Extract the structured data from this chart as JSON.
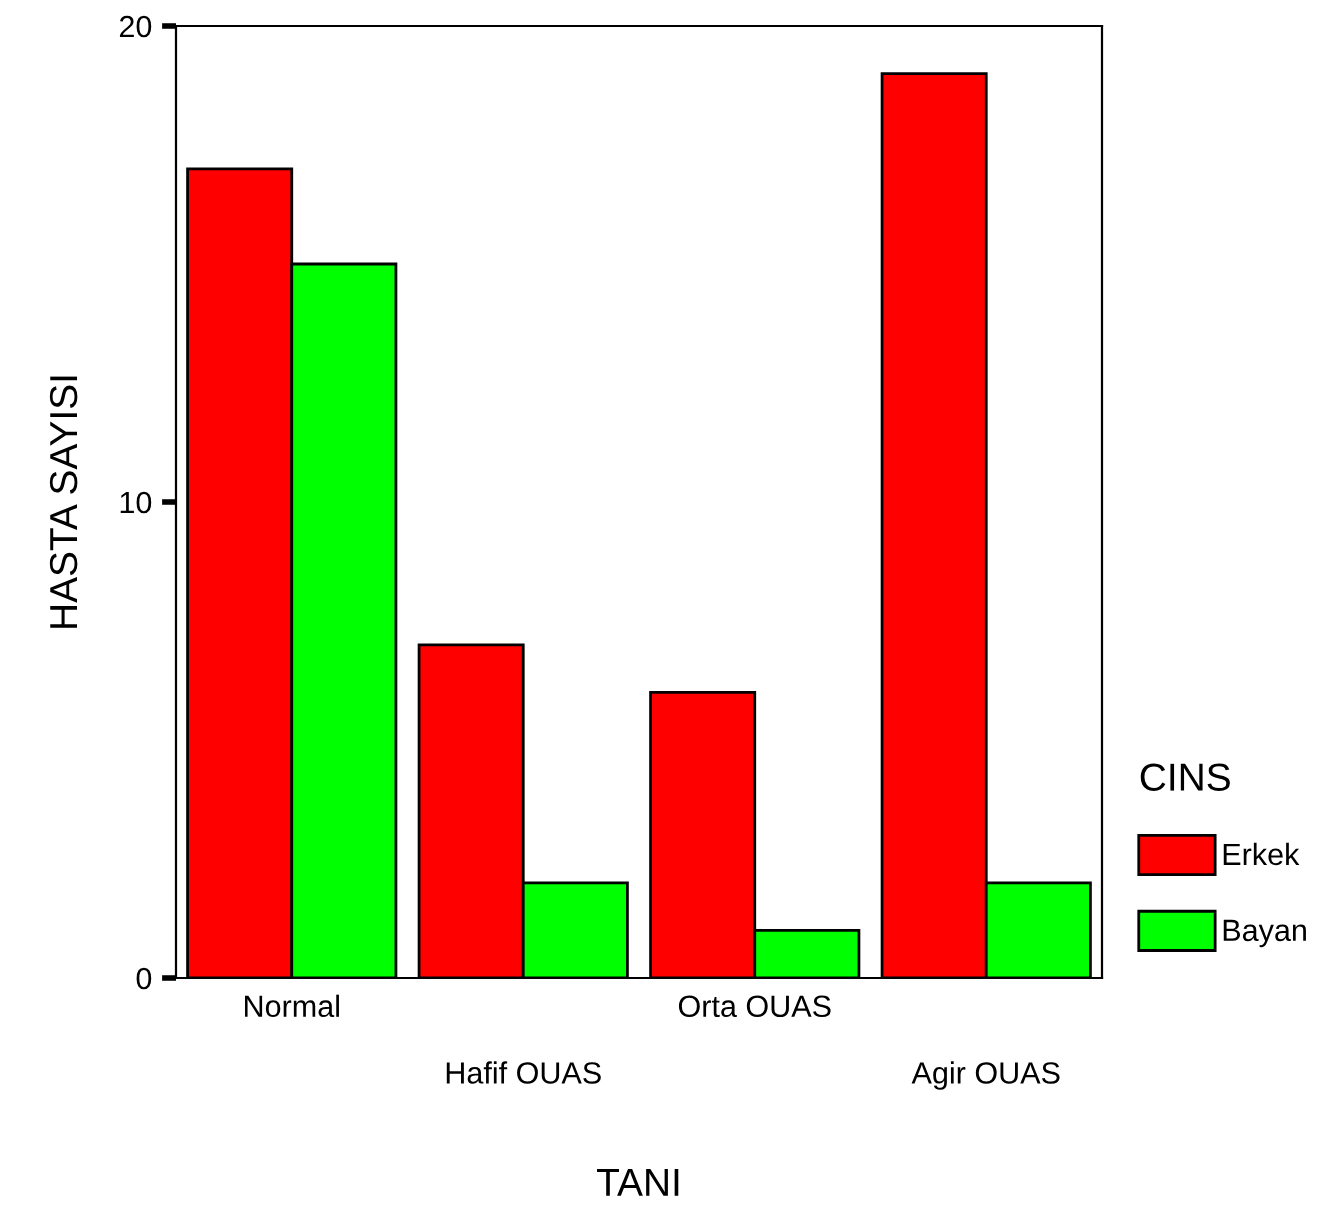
{
  "chart_data": {
    "type": "bar",
    "xlabel": "TANI",
    "ylabel": "HASTA SAYISI",
    "legend_title": "CINS",
    "categories": [
      "Normal",
      "Hafif OUAS",
      "Orta OUAS",
      "Agir OUAS"
    ],
    "series": [
      {
        "name": "Erkek",
        "color": "#ff0000",
        "values": [
          17,
          7,
          6,
          19
        ]
      },
      {
        "name": "Bayan",
        "color": "#00ff00",
        "values": [
          15,
          2,
          1,
          2
        ]
      }
    ],
    "ylim": [
      0,
      20
    ],
    "yticks": [
      0,
      10,
      20
    ],
    "grid": false,
    "legend": "right"
  }
}
